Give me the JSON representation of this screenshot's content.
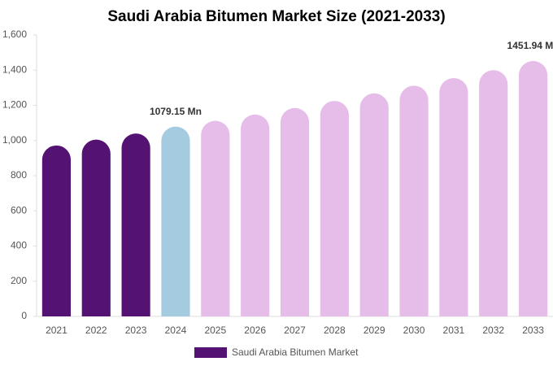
{
  "chart_data": {
    "type": "bar",
    "title": "Saudi Arabia Bitumen Market Size (2021-2033)",
    "categories": [
      "2021",
      "2022",
      "2023",
      "2024",
      "2025",
      "2026",
      "2027",
      "2028",
      "2029",
      "2030",
      "2031",
      "2032",
      "2033"
    ],
    "series": [
      {
        "name": "Saudi Arabia Bitumen Market",
        "color": "#541272",
        "values": [
          972,
          1005,
          1040,
          1079.15,
          1112,
          1148,
          1185,
          1225,
          1268,
          1312,
          1355,
          1400,
          1451.94
        ],
        "value_labels": [
          null,
          null,
          null,
          "1079.15 Mn",
          null,
          null,
          null,
          null,
          null,
          null,
          null,
          null,
          "1451.94 Mn"
        ],
        "colors": [
          "#541272",
          "#541272",
          "#541272",
          "#a4cbdf",
          "#e6bde8",
          "#e6bde8",
          "#e6bde8",
          "#e6bde8",
          "#e6bde8",
          "#e6bde8",
          "#e6bde8",
          "#e6bde8",
          "#e6bde8"
        ]
      }
    ],
    "ylim": [
      0,
      1600
    ],
    "yticks": [
      0,
      200,
      400,
      600,
      800,
      {
        "value": 1000,
        "label": "1,000"
      },
      {
        "value": 1200,
        "label": "1,200"
      },
      {
        "value": 1400,
        "label": "1,400"
      },
      {
        "value": 1600,
        "label": "1,600"
      }
    ],
    "grid": false
  }
}
